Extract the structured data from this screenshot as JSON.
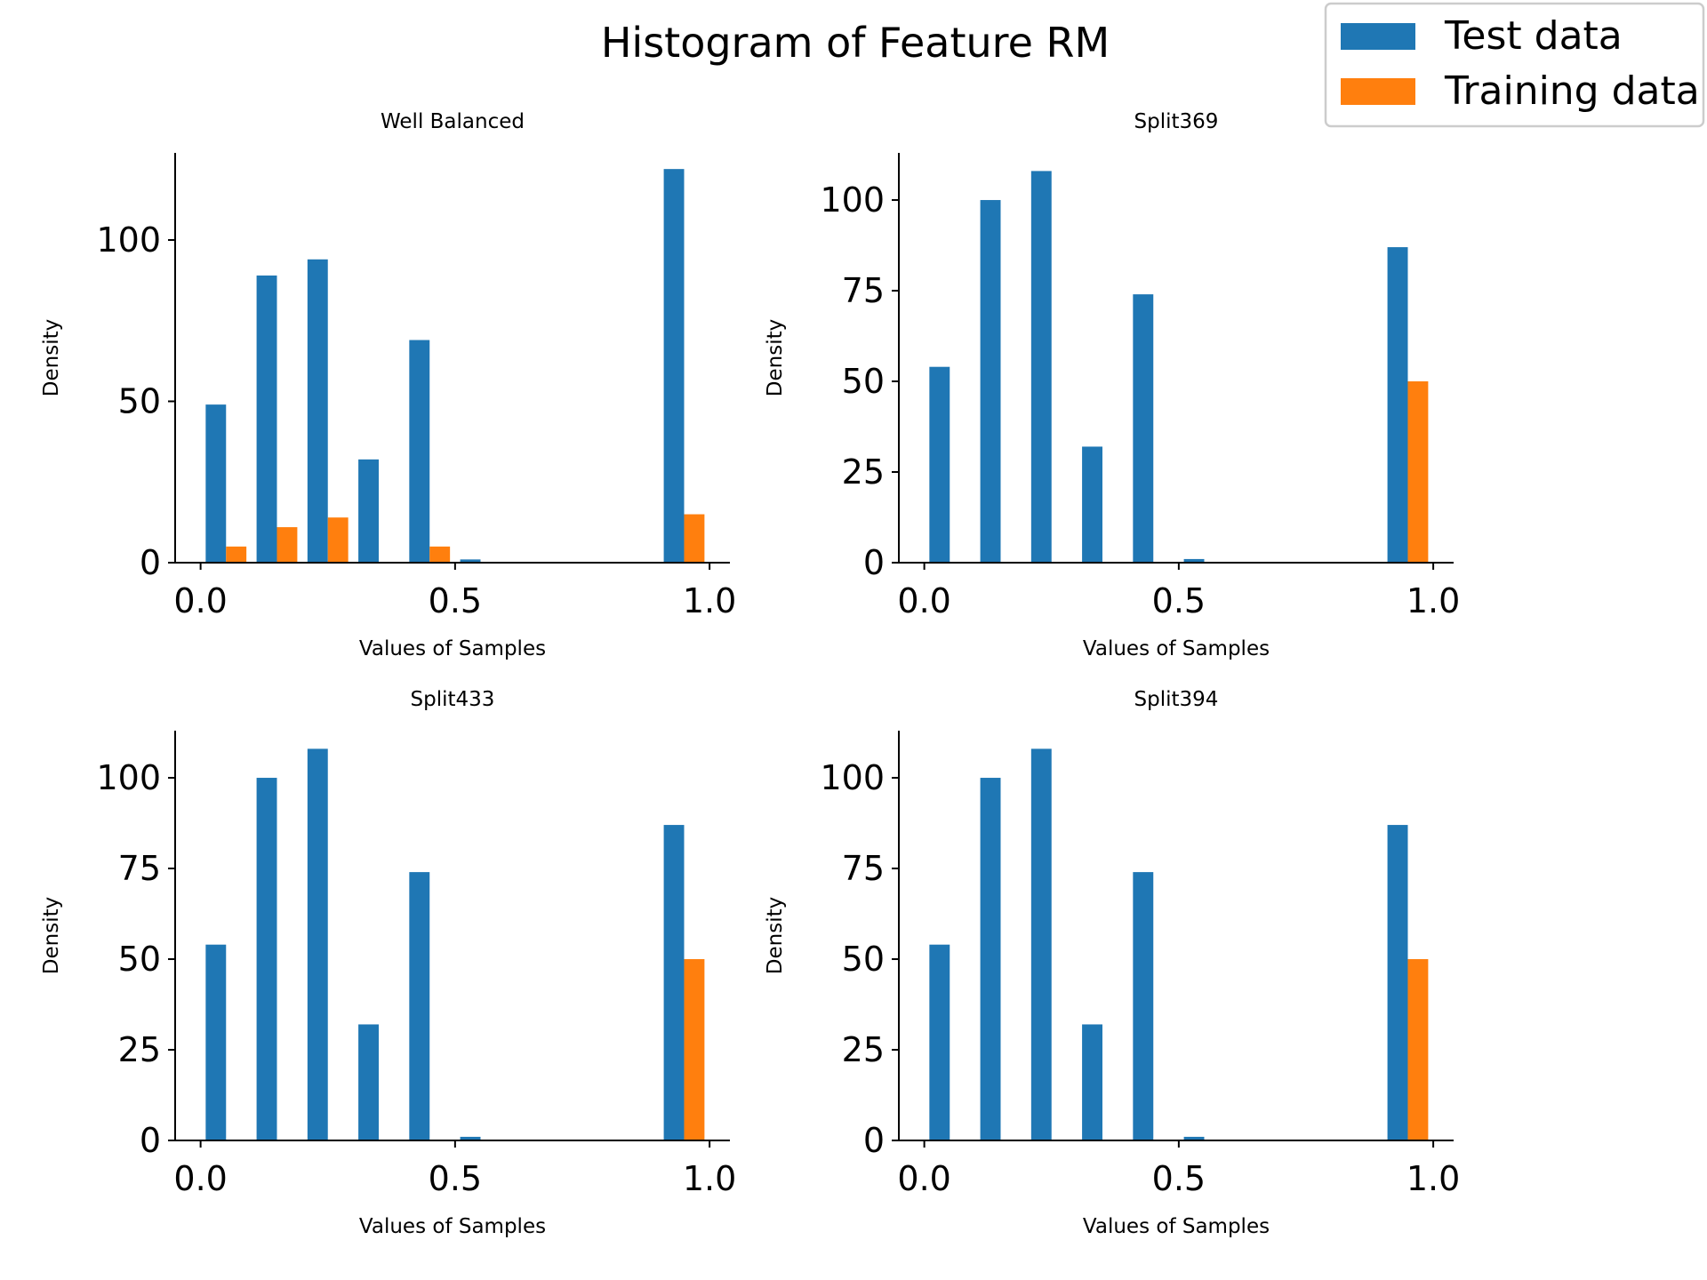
{
  "figure": {
    "title": "Histogram of Feature RM"
  },
  "legend": {
    "placement": "top-right",
    "entries": [
      {
        "label": "Test data",
        "color": "#1f77b4"
      },
      {
        "label": "Training data",
        "color": "#ff7f0e"
      }
    ]
  },
  "chart_data": [
    {
      "type": "bar",
      "title": "Well Balanced",
      "xlabel": "Values of Samples",
      "ylabel": "Density",
      "xlim": [
        -0.05,
        1.04
      ],
      "ylim": [
        0,
        127
      ],
      "xticks": [
        "0.0",
        "0.5",
        "1.0"
      ],
      "yticks": [
        "0",
        "50",
        "100"
      ],
      "bin_edges": [
        0.0,
        0.1,
        0.2,
        0.3,
        0.4,
        0.5,
        0.6,
        0.7,
        0.8,
        0.9,
        1.0
      ],
      "series": [
        {
          "name": "Test data",
          "color": "#1f77b4",
          "values": [
            49,
            89,
            94,
            32,
            69,
            1,
            0,
            0,
            0,
            122
          ]
        },
        {
          "name": "Training data",
          "color": "#ff7f0e",
          "values": [
            5,
            11,
            14,
            0,
            5,
            0,
            0,
            0,
            0,
            15
          ]
        }
      ]
    },
    {
      "type": "bar",
      "title": "Split369",
      "xlabel": "Values of Samples",
      "ylabel": "Density",
      "xlim": [
        -0.05,
        1.04
      ],
      "ylim": [
        0,
        113
      ],
      "xticks": [
        "0.0",
        "0.5",
        "1.0"
      ],
      "yticks": [
        "0",
        "25",
        "50",
        "75",
        "100"
      ],
      "bin_edges": [
        0.0,
        0.1,
        0.2,
        0.3,
        0.4,
        0.5,
        0.6,
        0.7,
        0.8,
        0.9,
        1.0
      ],
      "series": [
        {
          "name": "Test data",
          "color": "#1f77b4",
          "values": [
            54,
            100,
            108,
            32,
            74,
            1,
            0,
            0,
            0,
            87
          ]
        },
        {
          "name": "Training data",
          "color": "#ff7f0e",
          "values": [
            0,
            0,
            0,
            0,
            0,
            0,
            0,
            0,
            0,
            50
          ]
        }
      ]
    },
    {
      "type": "bar",
      "title": "Split433",
      "xlabel": "Values of Samples",
      "ylabel": "Density",
      "xlim": [
        -0.05,
        1.04
      ],
      "ylim": [
        0,
        113
      ],
      "xticks": [
        "0.0",
        "0.5",
        "1.0"
      ],
      "yticks": [
        "0",
        "25",
        "50",
        "75",
        "100"
      ],
      "bin_edges": [
        0.0,
        0.1,
        0.2,
        0.3,
        0.4,
        0.5,
        0.6,
        0.7,
        0.8,
        0.9,
        1.0
      ],
      "series": [
        {
          "name": "Test data",
          "color": "#1f77b4",
          "values": [
            54,
            100,
            108,
            32,
            74,
            1,
            0,
            0,
            0,
            87
          ]
        },
        {
          "name": "Training data",
          "color": "#ff7f0e",
          "values": [
            0,
            0,
            0,
            0,
            0,
            0,
            0,
            0,
            0,
            50
          ]
        }
      ]
    },
    {
      "type": "bar",
      "title": "Split394",
      "xlabel": "Values of Samples",
      "ylabel": "Density",
      "xlim": [
        -0.05,
        1.04
      ],
      "ylim": [
        0,
        113
      ],
      "xticks": [
        "0.0",
        "0.5",
        "1.0"
      ],
      "yticks": [
        "0",
        "25",
        "50",
        "75",
        "100"
      ],
      "bin_edges": [
        0.0,
        0.1,
        0.2,
        0.3,
        0.4,
        0.5,
        0.6,
        0.7,
        0.8,
        0.9,
        1.0
      ],
      "series": [
        {
          "name": "Test data",
          "color": "#1f77b4",
          "values": [
            54,
            100,
            108,
            32,
            74,
            1,
            0,
            0,
            0,
            87
          ]
        },
        {
          "name": "Training data",
          "color": "#ff7f0e",
          "values": [
            0,
            0,
            0,
            0,
            0,
            0,
            0,
            0,
            0,
            50
          ]
        }
      ]
    }
  ]
}
